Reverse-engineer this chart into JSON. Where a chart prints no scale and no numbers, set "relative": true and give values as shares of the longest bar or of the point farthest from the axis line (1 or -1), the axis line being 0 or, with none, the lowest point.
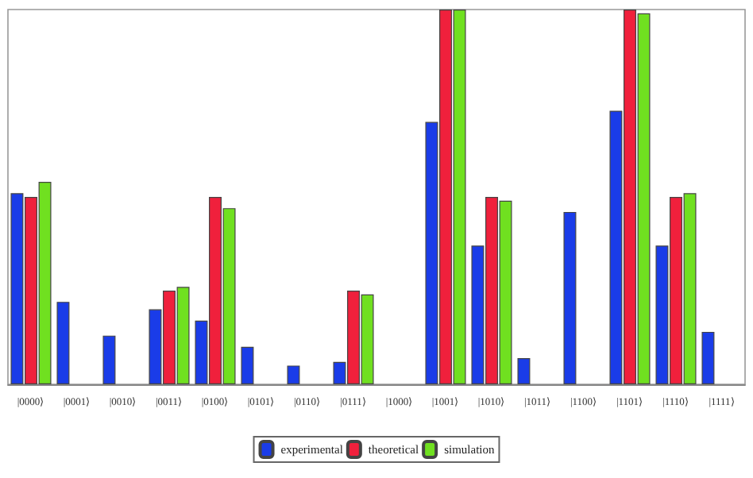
{
  "chart_data": {
    "type": "bar",
    "relative": true,
    "legend": "bottom",
    "categories": [
      "|0000⟩",
      "|0001⟩",
      "|0010⟩",
      "|0011⟩",
      "|0100⟩",
      "|0101⟩",
      "|0110⟩",
      "|0111⟩",
      "|1000⟩",
      "|1001⟩",
      "|1010⟩",
      "|1011⟩",
      "|1100⟩",
      "|1101⟩",
      "|1110⟩",
      "|1111⟩"
    ],
    "series": [
      {
        "name": "experimental",
        "color": "#1a3ce8",
        "values": [
          0.51,
          0.22,
          0.13,
          0.2,
          0.17,
          0.1,
          0.05,
          0.06,
          0,
          0.7,
          0.37,
          0.07,
          0.46,
          0.73,
          0.37,
          0.14
        ]
      },
      {
        "name": "theoretical",
        "color": "#f0203c",
        "values": [
          0.5,
          0,
          0,
          0.25,
          0.5,
          0,
          0,
          0.25,
          0,
          1,
          0.5,
          0,
          0,
          1,
          0.5,
          0
        ]
      },
      {
        "name": "simulation",
        "color": "#70e020",
        "values": [
          0.54,
          0,
          0,
          0.26,
          0.47,
          0,
          0,
          0.24,
          0,
          1,
          0.49,
          0,
          0,
          0.99,
          0.51,
          0
        ]
      }
    ]
  }
}
